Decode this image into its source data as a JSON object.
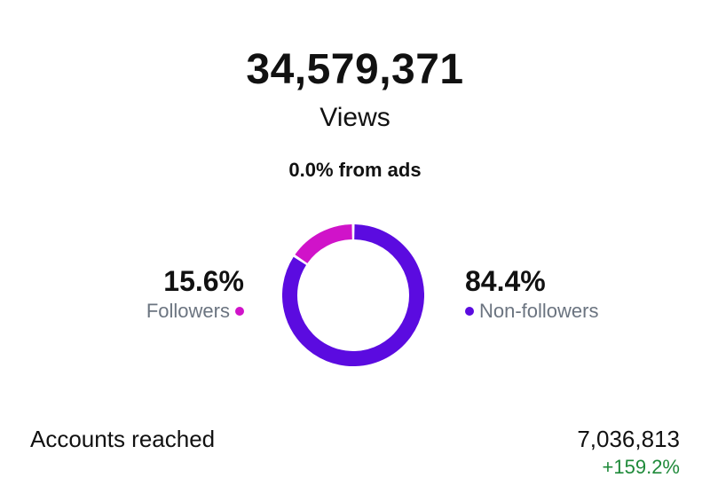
{
  "summary": {
    "total_views": "34,579,371",
    "views_label": "Views",
    "ads_text": "0.0% from ads"
  },
  "audience": {
    "followers": {
      "percent_text": "15.6%",
      "label": "Followers",
      "value": 15.6,
      "color": "#d013c9"
    },
    "non_followers": {
      "percent_text": "84.4%",
      "label": "Non-followers",
      "value": 84.4,
      "color": "#5b0be0"
    }
  },
  "accounts": {
    "label": "Accounts reached",
    "value": "7,036,813",
    "change": "+159.2%",
    "change_color": "#1f8a3a"
  }
}
